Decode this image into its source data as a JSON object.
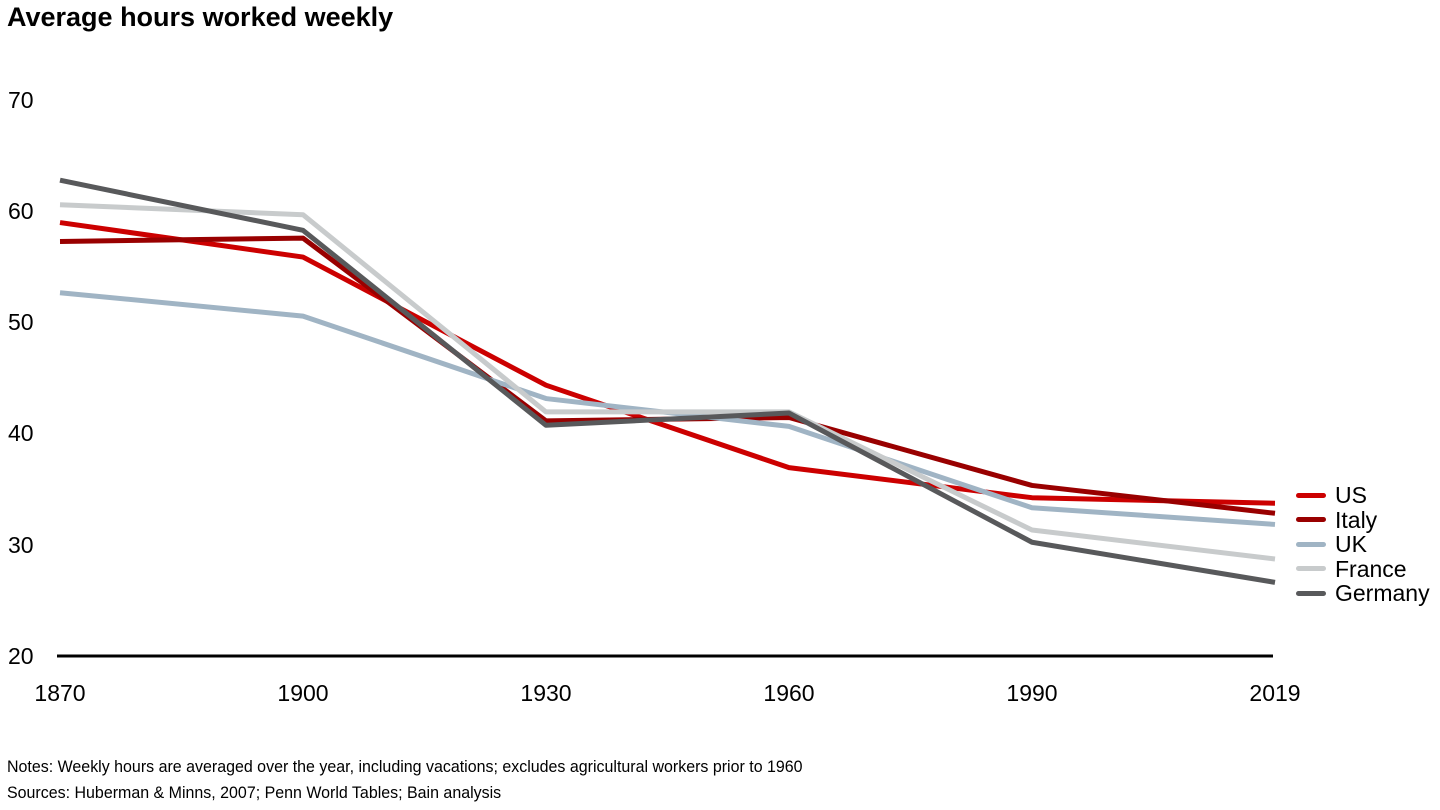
{
  "title": "Average hours worked weekly",
  "chart_data": {
    "type": "line",
    "title": "Average hours worked weekly",
    "x": [
      1870,
      1900,
      1930,
      1960,
      1990,
      2019
    ],
    "x_tick_labels": [
      "1870",
      "1900",
      "1930",
      "1960",
      "1990",
      "2019"
    ],
    "y_tick_labels": [
      "70",
      "60",
      "50",
      "40",
      "30",
      "20"
    ],
    "ylim": [
      20,
      70
    ],
    "xlabel": "",
    "ylabel": "",
    "grid": false,
    "legend_position": "right-middle",
    "axis_color": "#000000",
    "series": [
      {
        "name": "US",
        "color": "#cc0000",
        "values": [
          59.0,
          55.9,
          44.4,
          37.0,
          34.3,
          33.8
        ]
      },
      {
        "name": "Italy",
        "color": "#990000",
        "values": [
          57.3,
          57.6,
          41.2,
          41.5,
          35.4,
          32.9
        ]
      },
      {
        "name": "UK",
        "color": "#a0b4c4",
        "values": [
          52.7,
          50.6,
          43.2,
          40.7,
          33.4,
          31.9
        ]
      },
      {
        "name": "France",
        "color": "#c8cbcc",
        "values": [
          60.6,
          59.7,
          42.0,
          42.0,
          31.4,
          28.8
        ]
      },
      {
        "name": "Germany",
        "color": "#58595b",
        "values": [
          62.8,
          58.3,
          40.8,
          41.9,
          30.3,
          26.7
        ]
      }
    ]
  },
  "footer": {
    "notes": "Notes: Weekly hours are averaged over the year, including vacations; excludes agricultural workers prior to 1960",
    "sources": "Sources: Huberman & Minns, 2007; Penn World Tables; Bain analysis"
  }
}
